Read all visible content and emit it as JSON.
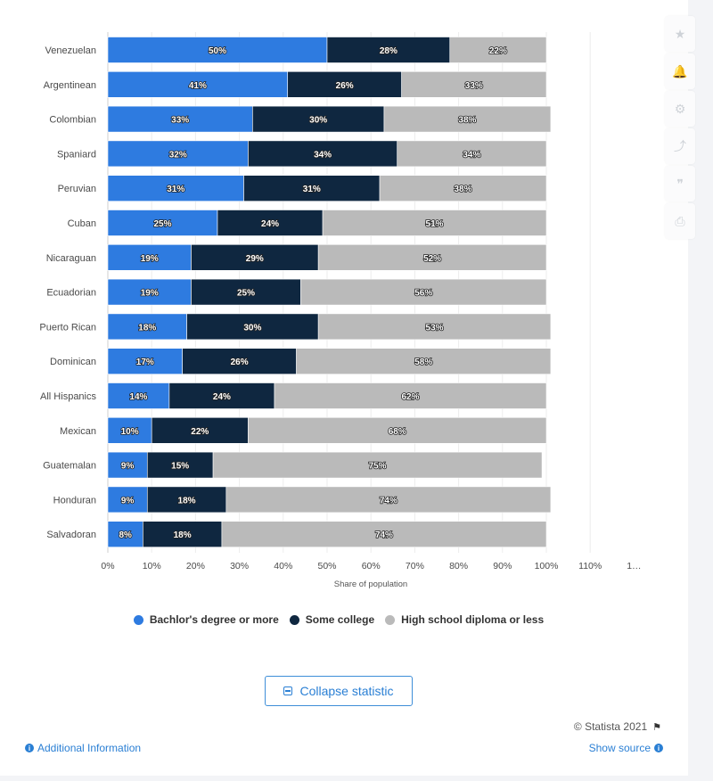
{
  "chart_data": {
    "type": "bar",
    "orientation": "horizontal",
    "stacked": true,
    "categories": [
      "Venezuelan",
      "Argentinean",
      "Colombian",
      "Spaniard",
      "Peruvian",
      "Cuban",
      "Nicaraguan",
      "Ecuadorian",
      "Puerto Rican",
      "Dominican",
      "All Hispanics",
      "Mexican",
      "Guatemalan",
      "Honduran",
      "Salvadoran"
    ],
    "series": [
      {
        "name": "Bachlor's degree or more",
        "values": [
          50,
          41,
          33,
          32,
          31,
          25,
          19,
          19,
          18,
          17,
          14,
          10,
          9,
          9,
          8
        ]
      },
      {
        "name": "Some college",
        "values": [
          28,
          26,
          30,
          34,
          31,
          24,
          29,
          25,
          30,
          26,
          24,
          22,
          15,
          18,
          18
        ]
      },
      {
        "name": "High school diploma or less",
        "values": [
          22,
          33,
          38,
          34,
          38,
          51,
          52,
          56,
          53,
          58,
          62,
          68,
          75,
          74,
          74
        ]
      }
    ],
    "colors": [
      "#2e7be0",
      "#0f2740",
      "#bababa"
    ],
    "xlim": [
      0,
      110
    ],
    "x_ticks": [
      "0%",
      "10%",
      "20%",
      "30%",
      "40%",
      "50%",
      "60%",
      "70%",
      "80%",
      "90%",
      "100%",
      "110%",
      "1…"
    ],
    "xlabel": "Share of population",
    "grid": true,
    "legend": "bottom"
  },
  "legend": {
    "items": [
      {
        "label": "Bachlor's degree or more",
        "color": "#2e7be0"
      },
      {
        "label": "Some college",
        "color": "#0f2740"
      },
      {
        "label": "High school diploma or less",
        "color": "#bababa"
      }
    ]
  },
  "controls": {
    "collapse_label": "Collapse statistic",
    "additional_info_label": "Additional Information",
    "show_source_label": "Show source",
    "copyright": "© Statista 2021"
  },
  "toolbar": {
    "icons": [
      "star-icon",
      "bell-icon",
      "gear-icon",
      "share-icon",
      "quote-icon",
      "print-icon"
    ]
  }
}
